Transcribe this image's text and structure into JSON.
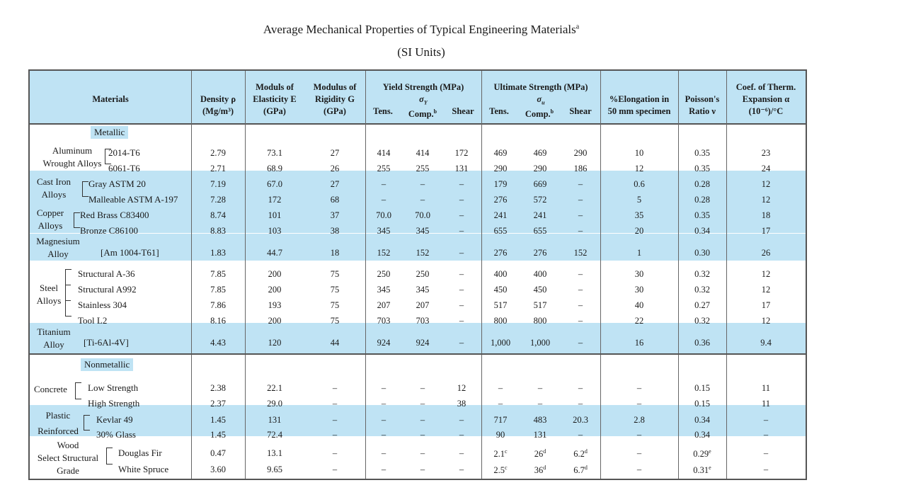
{
  "title": "Average Mechanical Properties of Typical Engineering Materials",
  "title_sup": "a",
  "subtitle": "(SI Units)",
  "headers": {
    "materials": "Materials",
    "density_1": "Density ρ",
    "density_2": "(Mg/m³)",
    "elast_1": "Moduls of",
    "elast_2": "Elasticity E",
    "elast_3": "(GPa)",
    "rigid_1": "Modulus of",
    "rigid_2": "Rigidity G",
    "rigid_3": "(GPa)",
    "yield_1": "Yield Strength (MPa)",
    "yield_sym": "σ",
    "yield_sub": "Y",
    "ult_1": "Ultimate Strength (MPa)",
    "ult_sym": "σ",
    "ult_sub": "u",
    "tens": "Tens.",
    "comp": "Comp.",
    "comp_sup": "b",
    "shear": "Shear",
    "elong_1": "%Elongation in",
    "elong_2": "50 mm specimen",
    "pois_1": "Poisson's",
    "pois_2": "Ratio ν",
    "coef_1": "Coef. of Therm.",
    "coef_2": "Expansion α",
    "coef_3": "(10⁻⁶)/°C"
  },
  "sections": {
    "metallic": "Metallic",
    "nonmetallic": "Nonmetallic"
  },
  "groups": {
    "aluminum_1": "Aluminum",
    "aluminum_2": "Wrought Alloys",
    "castiron_1": "Cast Iron",
    "castiron_2": "Alloys",
    "copper_1": "Copper",
    "copper_2": "Alloys",
    "magnesium_1": "Magnesium",
    "magnesium_2": "Alloy",
    "steel_1": "Steel",
    "steel_2": "Alloys",
    "titanium_1": "Titanium",
    "titanium_2": "Alloy",
    "concrete": "Concrete",
    "plastic_1": "Plastic",
    "plastic_2": "Reinforced",
    "wood_1": "Wood",
    "wood_2": "Select Structural",
    "wood_3": "Grade"
  },
  "rows": [
    {
      "name": "2014-T6",
      "d": "2.79",
      "e": "73.1",
      "g": "27",
      "yt": "414",
      "yc": "414",
      "ys": "172",
      "ut": "469",
      "uc": "469",
      "us": "290",
      "el": "10",
      "nu": "0.35",
      "a": "23"
    },
    {
      "name": "6061-T6",
      "d": "2.71",
      "e": "68.9",
      "g": "26",
      "yt": "255",
      "yc": "255",
      "ys": "131",
      "ut": "290",
      "uc": "290",
      "us": "186",
      "el": "12",
      "nu": "0.35",
      "a": "24"
    },
    {
      "name": "Gray ASTM 20",
      "d": "7.19",
      "e": "67.0",
      "g": "27",
      "yt": "–",
      "yc": "–",
      "ys": "–",
      "ut": "179",
      "uc": "669",
      "us": "–",
      "el": "0.6",
      "nu": "0.28",
      "a": "12"
    },
    {
      "name": "Malleable ASTM A-197",
      "d": "7.28",
      "e": "172",
      "g": "68",
      "yt": "–",
      "yc": "–",
      "ys": "–",
      "ut": "276",
      "uc": "572",
      "us": "–",
      "el": "5",
      "nu": "0.28",
      "a": "12"
    },
    {
      "name": "Red Brass C83400",
      "d": "8.74",
      "e": "101",
      "g": "37",
      "yt": "70.0",
      "yc": "70.0",
      "ys": "–",
      "ut": "241",
      "uc": "241",
      "us": "–",
      "el": "35",
      "nu": "0.35",
      "a": "18"
    },
    {
      "name": "Bronze C86100",
      "d": "8.83",
      "e": "103",
      "g": "38",
      "yt": "345",
      "yc": "345",
      "ys": "–",
      "ut": "655",
      "uc": "655",
      "us": "–",
      "el": "20",
      "nu": "0.34",
      "a": "17"
    },
    {
      "name": "[Am 1004-T61]",
      "d": "1.83",
      "e": "44.7",
      "g": "18",
      "yt": "152",
      "yc": "152",
      "ys": "–",
      "ut": "276",
      "uc": "276",
      "us": "152",
      "el": "1",
      "nu": "0.30",
      "a": "26"
    },
    {
      "name": "Structural A-36",
      "d": "7.85",
      "e": "200",
      "g": "75",
      "yt": "250",
      "yc": "250",
      "ys": "–",
      "ut": "400",
      "uc": "400",
      "us": "–",
      "el": "30",
      "nu": "0.32",
      "a": "12"
    },
    {
      "name": "Structural A992",
      "d": "7.85",
      "e": "200",
      "g": "75",
      "yt": "345",
      "yc": "345",
      "ys": "–",
      "ut": "450",
      "uc": "450",
      "us": "–",
      "el": "30",
      "nu": "0.32",
      "a": "12"
    },
    {
      "name": "Stainless 304",
      "d": "7.86",
      "e": "193",
      "g": "75",
      "yt": "207",
      "yc": "207",
      "ys": "–",
      "ut": "517",
      "uc": "517",
      "us": "–",
      "el": "40",
      "nu": "0.27",
      "a": "17"
    },
    {
      "name": "Tool L2",
      "d": "8.16",
      "e": "200",
      "g": "75",
      "yt": "703",
      "yc": "703",
      "ys": "–",
      "ut": "800",
      "uc": "800",
      "us": "–",
      "el": "22",
      "nu": "0.32",
      "a": "12"
    },
    {
      "name": "[Ti-6Al-4V]",
      "d": "4.43",
      "e": "120",
      "g": "44",
      "yt": "924",
      "yc": "924",
      "ys": "–",
      "ut": "1,000",
      "uc": "1,000",
      "us": "–",
      "el": "16",
      "nu": "0.36",
      "a": "9.4"
    },
    {
      "name": "Low Strength",
      "d": "2.38",
      "e": "22.1",
      "g": "–",
      "yt": "–",
      "yc": "–",
      "ys": "12",
      "ut": "–",
      "uc": "–",
      "us": "–",
      "el": "–",
      "nu": "0.15",
      "a": "11"
    },
    {
      "name": "High Strength",
      "d": "2.37",
      "e": "29.0",
      "g": "–",
      "yt": "–",
      "yc": "–",
      "ys": "38",
      "ut": "–",
      "uc": "–",
      "us": "–",
      "el": "–",
      "nu": "0.15",
      "a": "11"
    },
    {
      "name": "Kevlar 49",
      "d": "1.45",
      "e": "131",
      "g": "–",
      "yt": "–",
      "yc": "–",
      "ys": "–",
      "ut": "717",
      "uc": "483",
      "us": "20.3",
      "el": "2.8",
      "nu": "0.34",
      "a": "–"
    },
    {
      "name": "30% Glass",
      "d": "1.45",
      "e": "72.4",
      "g": "–",
      "yt": "–",
      "yc": "–",
      "ys": "–",
      "ut": "90",
      "uc": "131",
      "us": "–",
      "el": "–",
      "nu": "0.34",
      "a": "–"
    },
    {
      "name": "Douglas Fir",
      "d": "0.47",
      "e": "13.1",
      "g": "–",
      "yt": "–",
      "yc": "–",
      "ys": "–",
      "ut": "2.1",
      "ut_sup": "c",
      "uc": "26",
      "uc_sup": "d",
      "us": "6.2",
      "us_sup": "d",
      "el": "–",
      "nu": "0.29",
      "nu_sup": "e",
      "a": "–"
    },
    {
      "name": "White Spruce",
      "d": "3.60",
      "e": "9.65",
      "g": "–",
      "yt": "–",
      "yc": "–",
      "ys": "–",
      "ut": "2.5",
      "ut_sup": "c",
      "uc": "36",
      "uc_sup": "d",
      "us": "6.7",
      "us_sup": "d",
      "el": "–",
      "nu": "0.31",
      "nu_sup": "e",
      "a": "–"
    }
  ]
}
